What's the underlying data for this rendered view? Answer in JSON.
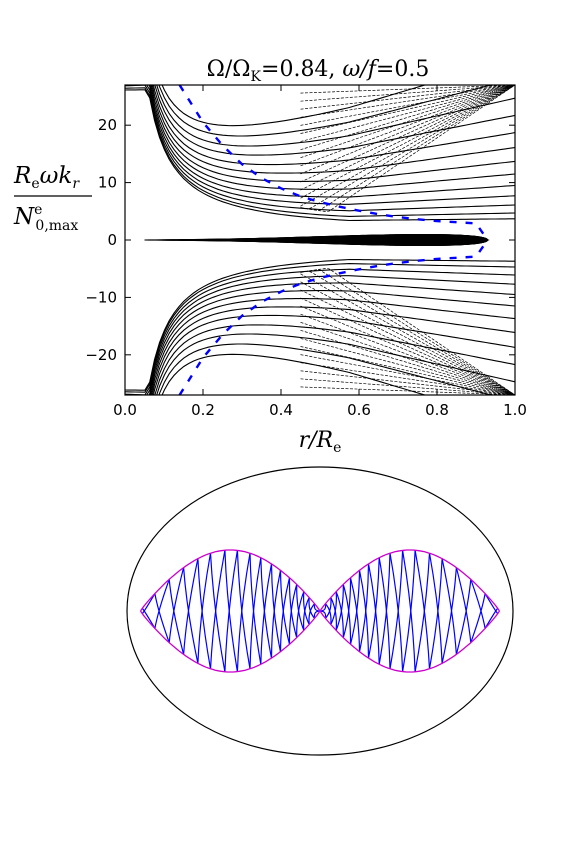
{
  "chart_data": [
    {
      "type": "line",
      "title": "Ω/Ω_K = 0.84, ω/f = 0.5",
      "title_parts": {
        "lhs1": "Ω/Ω",
        "sub1": "K",
        "eq1": "=0.84, ",
        "lhs2": "ω/f",
        "eq2": "=0.5"
      },
      "xlabel": "r/R_e",
      "xlabel_parts": {
        "main": "r/R",
        "sub": "e"
      },
      "ylabel": "R_e ω k_r / N^e_{0,max}",
      "ylabel_parts": {
        "num_main1": "R",
        "num_sub": "e",
        "num_main2": "ωk",
        "num_sub2": "r",
        "den_main": "N",
        "den_sup": "e",
        "den_sub": "0,max"
      },
      "xlim": [
        0.0,
        1.0
      ],
      "ylim": [
        -27,
        27
      ],
      "xticks": [
        "0.0",
        "0.2",
        "0.4",
        "0.6",
        "0.8",
        "1.0"
      ],
      "xtick_values": [
        0.0,
        0.2,
        0.4,
        0.6,
        0.8,
        1.0
      ],
      "yticks": [
        "−20",
        "−10",
        "0",
        "10",
        "20"
      ],
      "ytick_values": [
        -20,
        -10,
        0,
        10,
        20
      ],
      "grid": false,
      "series": [
        {
          "style": "dashed",
          "color": "#0000ff",
          "x": [
            0.14,
            0.2,
            0.25,
            0.3,
            0.35,
            0.4,
            0.45,
            0.5,
            0.55,
            0.6,
            0.65,
            0.7,
            0.75,
            0.8,
            0.85,
            0.9,
            0.93
          ],
          "y": [
            27.0,
            20.5,
            16.5,
            13.2,
            10.8,
            9.0,
            7.6,
            6.6,
            5.8,
            5.1,
            4.5,
            4.0,
            3.6,
            3.3,
            3.1,
            2.9,
            0.0
          ]
        },
        {
          "style": "dashed",
          "color": "#0000ff",
          "x": [
            0.14,
            0.2,
            0.25,
            0.3,
            0.35,
            0.4,
            0.45,
            0.5,
            0.55,
            0.6,
            0.65,
            0.7,
            0.75,
            0.8,
            0.85,
            0.9,
            0.93
          ],
          "y": [
            -27.0,
            -20.5,
            -16.5,
            -13.2,
            -10.8,
            -9.0,
            -7.6,
            -6.6,
            -5.8,
            -5.1,
            -4.5,
            -4.0,
            -3.6,
            -3.3,
            -3.1,
            -2.9,
            0.0
          ]
        }
      ],
      "contours": {
        "color": "#000000",
        "description_levels_inner": [
          0.03,
          0.06,
          0.1,
          0.15,
          0.2,
          0.27,
          0.35,
          0.45,
          0.55,
          0.65,
          0.75,
          0.85,
          0.95,
          1.05,
          1.2,
          1.35,
          1.5,
          1.7,
          1.9,
          2.1,
          2.35
        ],
        "levels_outer": [
          0.5,
          1,
          1.7,
          2.5,
          3.4,
          4.4,
          5.5,
          6.7,
          8,
          9.5,
          11,
          12.7,
          14.5
        ]
      }
    },
    {
      "type": "diagram",
      "boundary_color": "#000000",
      "cavity_color": "#cc00cc",
      "ray_color": "#0000ff",
      "outer_ellipse": {
        "rx_ratio": 1.0,
        "ry_ratio": 0.835
      },
      "cavity_amplitude_ratio": 0.34,
      "ray_crossings": [
        -0.99,
        -0.92,
        -0.84,
        -0.76,
        -0.68,
        -0.61,
        -0.53,
        -0.46,
        -0.39,
        -0.33,
        -0.27,
        -0.22,
        -0.17,
        -0.13,
        -0.09,
        -0.06,
        -0.03,
        0.0,
        0.03,
        0.06,
        0.09,
        0.13,
        0.17,
        0.22,
        0.27,
        0.33,
        0.39,
        0.46,
        0.53,
        0.61,
        0.68,
        0.76,
        0.84,
        0.92,
        0.99
      ]
    }
  ]
}
